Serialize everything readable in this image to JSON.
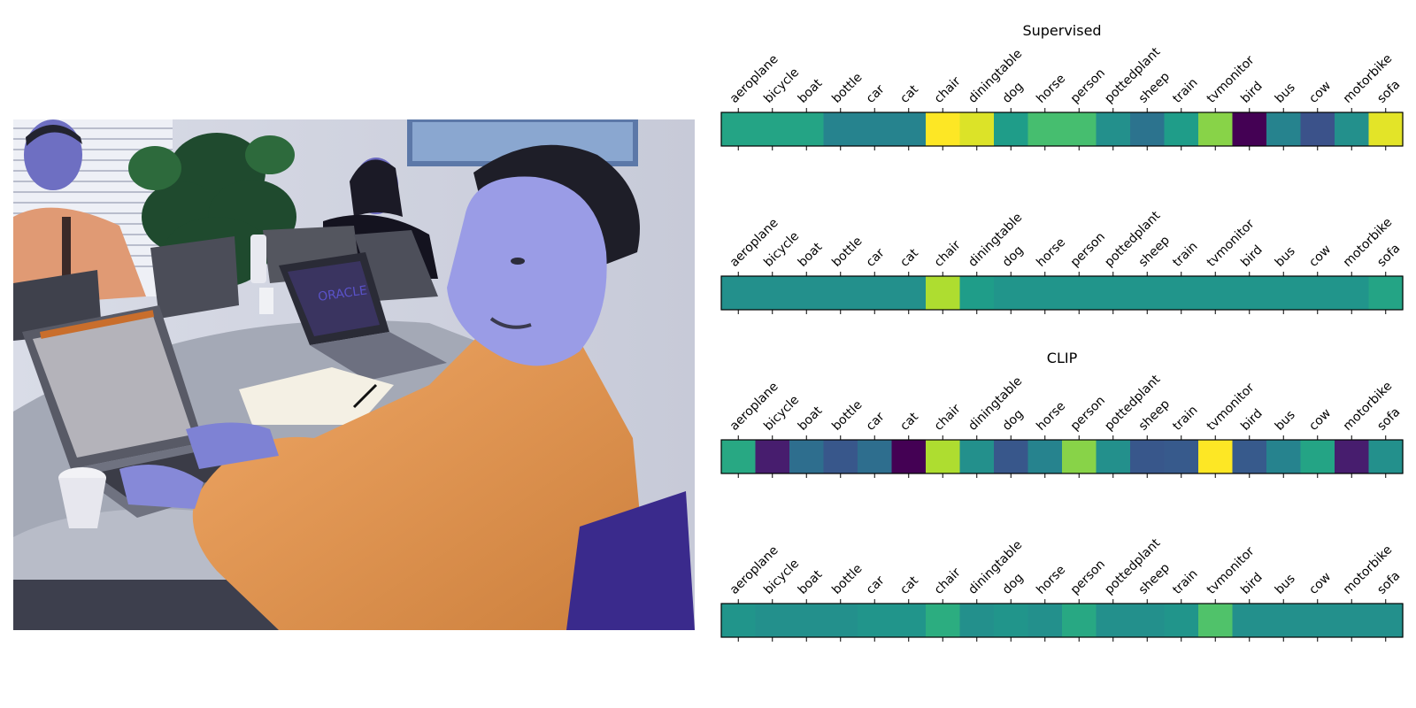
{
  "chart_data": [
    {
      "type": "heatmap",
      "title": "Supervised",
      "categories": [
        "aeroplane",
        "bicycle",
        "boat",
        "bottle",
        "car",
        "cat",
        "chair",
        "diningtable",
        "dog",
        "horse",
        "person",
        "pottedplant",
        "sheep",
        "train",
        "tvmonitor",
        "bird",
        "bus",
        "cow",
        "motorbike",
        "sofa"
      ],
      "values": [
        0.58,
        0.58,
        0.58,
        0.45,
        0.45,
        0.45,
        1.0,
        0.95,
        0.55,
        0.7,
        0.7,
        0.5,
        0.38,
        0.55,
        0.82,
        0.0,
        0.45,
        0.25,
        0.5,
        0.96
      ],
      "colormap": "viridis"
    },
    {
      "type": "heatmap",
      "title": "",
      "categories": [
        "aeroplane",
        "bicycle",
        "boat",
        "bottle",
        "car",
        "cat",
        "chair",
        "diningtable",
        "dog",
        "horse",
        "person",
        "pottedplant",
        "sheep",
        "train",
        "tvmonitor",
        "bird",
        "bus",
        "cow",
        "motorbike",
        "sofa"
      ],
      "values": [
        0.5,
        0.5,
        0.5,
        0.5,
        0.5,
        0.5,
        0.88,
        0.55,
        0.52,
        0.52,
        0.52,
        0.52,
        0.52,
        0.52,
        0.52,
        0.52,
        0.52,
        0.52,
        0.52,
        0.58
      ],
      "colormap": "viridis"
    },
    {
      "type": "heatmap",
      "title": "CLIP",
      "categories": [
        "aeroplane",
        "bicycle",
        "boat",
        "bottle",
        "car",
        "cat",
        "chair",
        "diningtable",
        "dog",
        "horse",
        "person",
        "pottedplant",
        "sheep",
        "train",
        "tvmonitor",
        "bird",
        "bus",
        "cow",
        "motorbike",
        "sofa"
      ],
      "values": [
        0.6,
        0.08,
        0.36,
        0.27,
        0.36,
        0.0,
        0.88,
        0.5,
        0.27,
        0.45,
        0.82,
        0.5,
        0.27,
        0.28,
        1.0,
        0.28,
        0.45,
        0.58,
        0.08,
        0.5
      ],
      "colormap": "viridis"
    },
    {
      "type": "heatmap",
      "title": "",
      "categories": [
        "aeroplane",
        "bicycle",
        "boat",
        "bottle",
        "car",
        "cat",
        "chair",
        "diningtable",
        "dog",
        "horse",
        "person",
        "pottedplant",
        "sheep",
        "train",
        "tvmonitor",
        "bird",
        "bus",
        "cow",
        "motorbike",
        "sofa"
      ],
      "values": [
        0.52,
        0.5,
        0.5,
        0.5,
        0.52,
        0.52,
        0.62,
        0.5,
        0.52,
        0.5,
        0.6,
        0.5,
        0.5,
        0.52,
        0.72,
        0.5,
        0.5,
        0.5,
        0.5,
        0.5
      ],
      "colormap": "viridis"
    }
  ],
  "photo": {
    "screen_text": "ORACLE"
  }
}
